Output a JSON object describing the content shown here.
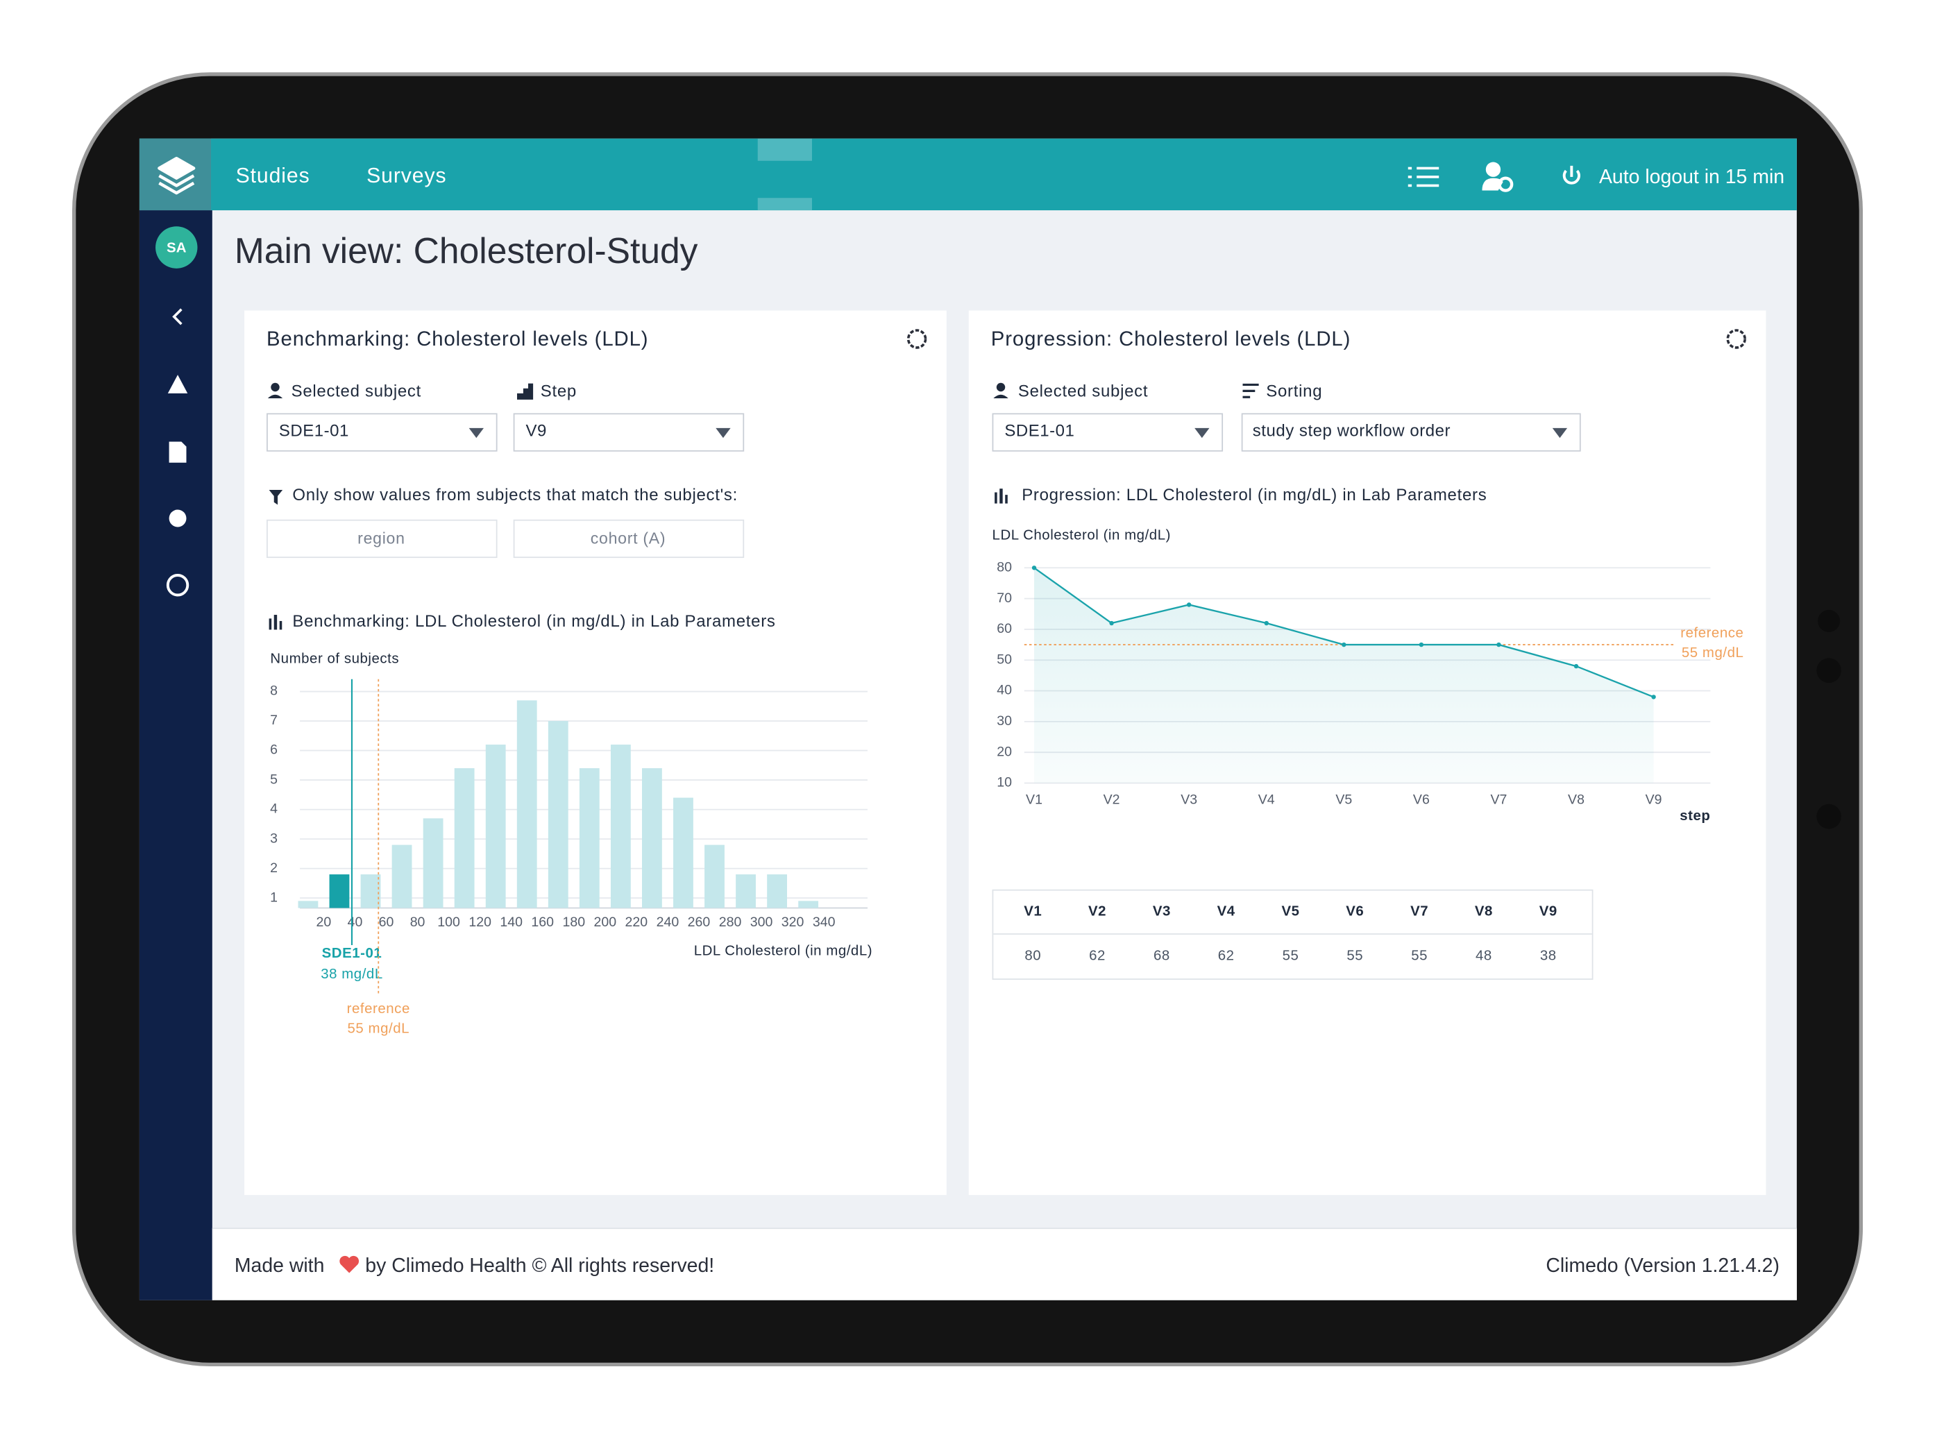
{
  "nav": {
    "items": [
      "Studies",
      "Surveys"
    ],
    "logout": "Auto logout in 15 min",
    "avatar": "SA"
  },
  "page_title": "Main view: Cholesterol-Study",
  "benchmark": {
    "title": "Benchmarking: Cholesterol levels (LDL)",
    "subject_label": "Selected subject",
    "subject": "SDE1-01",
    "step_label": "Step",
    "step": "V9",
    "filter_text": "Only show values from subjects that match the subject's:",
    "filters": [
      "region",
      "cohort (A)"
    ],
    "chart_data": {
      "type": "histogram",
      "title": "Benchmarking: LDL Cholesterol (in mg/dL) in Lab Parameters",
      "y_label": "Number of subjects",
      "x_label": "LDL Cholesterol (in mg/dL)",
      "bins": [
        0,
        20,
        40,
        60,
        80,
        100,
        120,
        140,
        160,
        180,
        200,
        220,
        240,
        260,
        280,
        300,
        320,
        340
      ],
      "values": [
        0.9,
        1.8,
        1.8,
        2.8,
        3.7,
        5.4,
        6.2,
        7.7,
        7,
        5.4,
        6.2,
        5.4,
        4.4,
        2.8,
        1.8,
        1.8,
        0.9
      ],
      "color": "#c4e7eb",
      "highlight_color": "#17a2a8",
      "xlim": [
        0,
        360
      ],
      "xticks": [
        20,
        40,
        60,
        80,
        100,
        120,
        140,
        160,
        180,
        200,
        220,
        240,
        260,
        280,
        300,
        320,
        340
      ],
      "ylim": [
        0.66,
        8
      ],
      "yticks": [
        1,
        2,
        3,
        4,
        5,
        6,
        7,
        8
      ],
      "grid": true,
      "subject": {
        "label": "SDE1-01",
        "value": 38,
        "value_label": "38 mg/dL",
        "color": "#17a2a8"
      },
      "reference": {
        "label": "reference",
        "value": 55,
        "value_label": "55 mg/dL",
        "color": "#f0a05a"
      }
    }
  },
  "progression": {
    "title": "Progression: Cholesterol levels (LDL)",
    "subject_label": "Selected subject",
    "subject": "SDE1-01",
    "sorting_label": "Sorting",
    "sorting": "study step workflow order",
    "chart_data": {
      "type": "line",
      "title": "Progression: LDL Cholesterol (in mg/dL) in Lab Parameters",
      "y_label": "LDL Cholesterol (in mg/dL)",
      "x_label": "step",
      "categories": [
        "V1",
        "V2",
        "V3",
        "V4",
        "V5",
        "V6",
        "V7",
        "V8",
        "V9"
      ],
      "values": [
        80,
        62,
        68,
        62,
        55,
        55,
        55,
        48,
        38
      ],
      "color": "#1aa3ab",
      "ylim": [
        10,
        80
      ],
      "yticks": [
        10,
        20,
        30,
        40,
        50,
        60,
        70,
        80
      ],
      "grid": true,
      "reference": {
        "label": "reference",
        "value": 55,
        "value_label": "55 mg/dL",
        "color": "#f0a05a"
      }
    }
  },
  "footer": {
    "left": "Made with",
    "left_after": "by Climedo Health © All rights reserved!",
    "right": "Climedo (Version 1.21.4.2)"
  }
}
